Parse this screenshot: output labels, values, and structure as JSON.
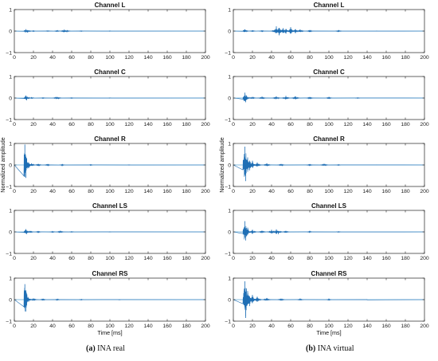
{
  "figure": {
    "captions": [
      {
        "tag": "(a)",
        "text": "INA real"
      },
      {
        "tag": "(b)",
        "text": "INA virtual"
      }
    ],
    "line_color": "#1f6fb5",
    "zero_line_color": "#5aa9d6"
  },
  "chart_data": [
    {
      "type": "line",
      "panel": "a",
      "title": "Channel L",
      "xlabel": "",
      "ylabel": "",
      "xlim": [
        0,
        200
      ],
      "ylim": [
        -1,
        1
      ],
      "xticks": [
        "0",
        "20",
        "40",
        "60",
        "80",
        "100",
        "120",
        "140",
        "160",
        "180",
        "200"
      ],
      "yticks": [
        "1",
        "0",
        "−1"
      ],
      "peaks": [
        [
          12,
          0.09
        ],
        [
          14,
          -0.07
        ],
        [
          20,
          0.02
        ],
        [
          35,
          0.02
        ],
        [
          45,
          0.03
        ],
        [
          52,
          0.07
        ],
        [
          55,
          -0.05
        ],
        [
          70,
          0.02
        ],
        [
          100,
          0.01
        ]
      ]
    },
    {
      "type": "line",
      "panel": "a",
      "title": "Channel C",
      "xlabel": "",
      "ylabel": "",
      "xlim": [
        0,
        200
      ],
      "ylim": [
        -1,
        1
      ],
      "xticks": [
        "0",
        "20",
        "40",
        "60",
        "80",
        "100",
        "120",
        "140",
        "160",
        "180",
        "200"
      ],
      "yticks": [
        "1",
        "0",
        "−1"
      ],
      "peaks": [
        [
          12,
          0.12
        ],
        [
          13,
          -0.1
        ],
        [
          18,
          0.03
        ],
        [
          30,
          0.02
        ],
        [
          44,
          0.05
        ],
        [
          46,
          -0.04
        ],
        [
          60,
          0.02
        ],
        [
          100,
          0.01
        ]
      ]
    },
    {
      "type": "line",
      "panel": "a",
      "title": "Channel R",
      "xlabel": "",
      "ylabel": "Normalized amplitude",
      "xlim": [
        0,
        200
      ],
      "ylim": [
        -1,
        1
      ],
      "xticks": [
        "0",
        "20",
        "40",
        "60",
        "80",
        "100",
        "120",
        "140",
        "160",
        "180",
        "200"
      ],
      "yticks": [
        "1",
        "0",
        "−1"
      ],
      "peaks": [
        [
          11,
          0.95
        ],
        [
          12,
          -0.6
        ],
        [
          13,
          0.3
        ],
        [
          15,
          -0.15
        ],
        [
          18,
          0.08
        ],
        [
          25,
          0.05
        ],
        [
          35,
          0.04
        ],
        [
          50,
          0.03
        ],
        [
          80,
          0.02
        ],
        [
          120,
          0.01
        ]
      ]
    },
    {
      "type": "line",
      "panel": "a",
      "title": "Channel LS",
      "xlabel": "",
      "ylabel": "",
      "xlim": [
        0,
        200
      ],
      "ylim": [
        -1,
        1
      ],
      "xticks": [
        "0",
        "20",
        "40",
        "60",
        "80",
        "100",
        "120",
        "140",
        "160",
        "180",
        "200"
      ],
      "yticks": [
        "1",
        "0",
        "−1"
      ],
      "peaks": [
        [
          12,
          0.13
        ],
        [
          13,
          -0.1
        ],
        [
          17,
          0.04
        ],
        [
          25,
          0.03
        ],
        [
          40,
          0.03
        ],
        [
          48,
          0.05
        ],
        [
          60,
          0.02
        ],
        [
          100,
          0.01
        ]
      ]
    },
    {
      "type": "line",
      "panel": "a",
      "title": "Channel RS",
      "xlabel": "Time [ms]",
      "ylabel": "",
      "xlim": [
        0,
        200
      ],
      "ylim": [
        -1,
        1
      ],
      "xticks": [
        "0",
        "20",
        "40",
        "60",
        "80",
        "100",
        "120",
        "140",
        "160",
        "180",
        "200"
      ],
      "yticks": [
        "1",
        "0",
        "−1"
      ],
      "peaks": [
        [
          11,
          0.72
        ],
        [
          12,
          -0.55
        ],
        [
          13,
          0.2
        ],
        [
          15,
          -0.1
        ],
        [
          20,
          0.06
        ],
        [
          30,
          0.04
        ],
        [
          45,
          0.03
        ],
        [
          70,
          0.02
        ],
        [
          110,
          0.01
        ]
      ]
    },
    {
      "type": "line",
      "panel": "b",
      "title": "Channel L",
      "xlabel": "",
      "ylabel": "",
      "xlim": [
        0,
        200
      ],
      "ylim": [
        -1,
        1
      ],
      "xticks": [
        "0",
        "20",
        "40",
        "60",
        "80",
        "100",
        "120",
        "140",
        "160",
        "180",
        "200"
      ],
      "yticks": [
        "1",
        "0",
        "−1"
      ],
      "peaks": [
        [
          12,
          0.08
        ],
        [
          20,
          0.03
        ],
        [
          30,
          0.03
        ],
        [
          45,
          0.22
        ],
        [
          48,
          -0.2
        ],
        [
          52,
          0.14
        ],
        [
          55,
          -0.12
        ],
        [
          60,
          0.18
        ],
        [
          65,
          -0.1
        ],
        [
          70,
          0.08
        ],
        [
          80,
          0.05
        ],
        [
          110,
          0.04
        ],
        [
          150,
          0.02
        ]
      ]
    },
    {
      "type": "line",
      "panel": "b",
      "title": "Channel C",
      "xlabel": "",
      "ylabel": "",
      "xlim": [
        0,
        200
      ],
      "ylim": [
        -1,
        1
      ],
      "xticks": [
        "0",
        "20",
        "40",
        "60",
        "80",
        "100",
        "120",
        "140",
        "160",
        "180",
        "200"
      ],
      "yticks": [
        "1",
        "0",
        "−1"
      ],
      "peaks": [
        [
          12,
          0.25
        ],
        [
          13,
          -0.2
        ],
        [
          20,
          0.05
        ],
        [
          30,
          0.07
        ],
        [
          45,
          0.08
        ],
        [
          55,
          0.1
        ],
        [
          65,
          0.08
        ],
        [
          80,
          0.05
        ],
        [
          100,
          0.04
        ],
        [
          130,
          0.02
        ]
      ]
    },
    {
      "type": "line",
      "panel": "b",
      "title": "Channel R",
      "xlabel": "",
      "ylabel": "Normalized amplitude",
      "xlim": [
        0,
        200
      ],
      "ylim": [
        -1,
        1
      ],
      "xticks": [
        "0",
        "20",
        "40",
        "60",
        "80",
        "100",
        "120",
        "140",
        "160",
        "180",
        "200"
      ],
      "yticks": [
        "1",
        "0",
        "−1"
      ],
      "peaks": [
        [
          12,
          0.85
        ],
        [
          13,
          -0.75
        ],
        [
          15,
          0.35
        ],
        [
          17,
          -0.25
        ],
        [
          20,
          0.2
        ],
        [
          25,
          0.12
        ],
        [
          35,
          0.08
        ],
        [
          50,
          0.05
        ],
        [
          80,
          0.04
        ],
        [
          95,
          0.06
        ],
        [
          110,
          0.02
        ],
        [
          150,
          0.015
        ]
      ]
    },
    {
      "type": "line",
      "panel": "b",
      "title": "Channel LS",
      "xlabel": "",
      "ylabel": "",
      "xlim": [
        0,
        200
      ],
      "ylim": [
        -1,
        1
      ],
      "xticks": [
        "0",
        "20",
        "40",
        "60",
        "80",
        "100",
        "120",
        "140",
        "160",
        "180",
        "200"
      ],
      "yticks": [
        "1",
        "0",
        "−1"
      ],
      "peaks": [
        [
          12,
          0.5
        ],
        [
          13,
          -0.4
        ],
        [
          15,
          0.2
        ],
        [
          20,
          0.1
        ],
        [
          30,
          0.06
        ],
        [
          40,
          0.1
        ],
        [
          45,
          0.12
        ],
        [
          47,
          -0.1
        ],
        [
          55,
          0.05
        ],
        [
          80,
          0.03
        ],
        [
          110,
          0.02
        ]
      ]
    },
    {
      "type": "line",
      "panel": "b",
      "title": "Channel RS",
      "xlabel": "Time [ms]",
      "ylabel": "",
      "xlim": [
        0,
        200
      ],
      "ylim": [
        -1,
        1
      ],
      "xticks": [
        "0",
        "20",
        "40",
        "60",
        "80",
        "100",
        "120",
        "140",
        "160",
        "180",
        "200"
      ],
      "yticks": [
        "1",
        "0",
        "−1"
      ],
      "peaks": [
        [
          12,
          0.85
        ],
        [
          13,
          -0.85
        ],
        [
          15,
          0.4
        ],
        [
          17,
          -0.3
        ],
        [
          20,
          0.22
        ],
        [
          25,
          0.14
        ],
        [
          35,
          0.08
        ],
        [
          50,
          0.05
        ],
        [
          70,
          0.04
        ],
        [
          100,
          0.03
        ],
        [
          140,
          0.01
        ]
      ]
    }
  ]
}
